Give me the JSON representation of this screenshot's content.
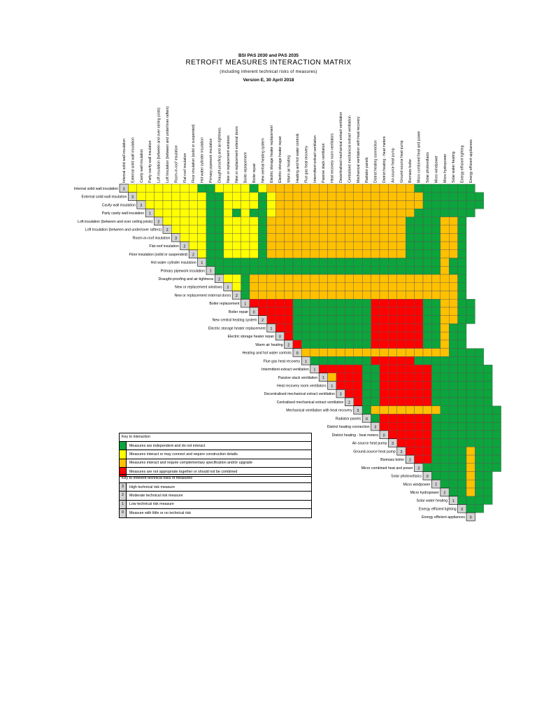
{
  "header": {
    "standards": "BSI PAS 2030 and PAS 2035",
    "title": "RETROFIT MEASURES INTERACTION MATRIX",
    "subtitle": "(including inherent technical risks of measures)",
    "version": "Version E, 30 April 2018"
  },
  "colors": {
    "G": "#0ca43c",
    "Y": "#ffff00",
    "O": "#ffc000",
    "R": "#ff0000",
    "risk_box": "#d3d3d3"
  },
  "measures": [
    {
      "label": "Internal solid wall insulation",
      "risk": "3"
    },
    {
      "label": "External solid wall insulation",
      "risk": "3"
    },
    {
      "label": "Cavity wall insulation",
      "risk": "2"
    },
    {
      "label": "Party cavity wall insulation",
      "risk": "1"
    },
    {
      "label": "Loft insulation (between and over ceiling joists)",
      "risk": "2"
    },
    {
      "label": "Loft Insulation (between and under/over rafters)",
      "risk": "2"
    },
    {
      "label": "Room-in-roof insulation",
      "risk": "3"
    },
    {
      "label": "Flat roof insulation",
      "risk": "2"
    },
    {
      "label": "Floor insulation (solid or suspended)",
      "risk": "2"
    },
    {
      "label": "Hot water cylinder insulation",
      "risk": "1"
    },
    {
      "label": "Primary pipework insulation",
      "risk": "1"
    },
    {
      "label": "Draught-proofing and air-tightness",
      "risk": "2"
    },
    {
      "label": "New or replacement windows",
      "risk": "2"
    },
    {
      "label": "New or replacement external doors",
      "risk": "2"
    },
    {
      "label": "Boiler replacement",
      "risk": "1"
    },
    {
      "label": "Boiler repair",
      "risk": "0"
    },
    {
      "label": "New central heating system",
      "risk": "2"
    },
    {
      "label": "Electric storage heater replacement",
      "risk": "1"
    },
    {
      "label": "Electric storage heater repair",
      "risk": "0"
    },
    {
      "label": "Warm air heating",
      "risk": "2"
    },
    {
      "label": "Heating and hot water controls",
      "risk": "0"
    },
    {
      "label": "Flue gas heat recovery",
      "risk": "1"
    },
    {
      "label": "Intermittent extract ventilation",
      "risk": "1"
    },
    {
      "label": "Passive stack ventilation",
      "risk": "1"
    },
    {
      "label": "Heat recovery room ventilators",
      "risk": "1"
    },
    {
      "label": "Decentralised mechanical extract ventilation",
      "risk": "3"
    },
    {
      "label": "Centralised mechanical extract ventilation",
      "risk": "2"
    },
    {
      "label": "Mechanical ventilation with heat recovery",
      "risk": "3"
    },
    {
      "label": "Radiator panels",
      "risk": "0"
    },
    {
      "label": "District heating connection",
      "risk": "3"
    },
    {
      "label": "District heating - heat meters",
      "risk": "0"
    },
    {
      "label": "Air-source heat pump",
      "risk": "3"
    },
    {
      "label": "Ground-source heat pump",
      "risk": "3"
    },
    {
      "label": "Biomass boiler",
      "risk": "2"
    },
    {
      "label": "Micro combined heat and power",
      "risk": "3"
    },
    {
      "label": "Solar photovoltaics",
      "risk": "0"
    },
    {
      "label": "Micro windpower",
      "risk": "2"
    },
    {
      "label": "Micro hydropower",
      "risk": "2"
    },
    {
      "label": "Solar water heating",
      "risk": "1"
    },
    {
      "label": "Energy efficient lighting",
      "risk": "0"
    },
    {
      "label": "Energy efficient appliances",
      "risk": "0"
    }
  ],
  "matrix_rows": [
    "YYYYYYYYGGYYYYGYOOOOOOOOOOOOOOOOOGGGGGGG",
    "YYYYYYYYGGYYYYGYOOOOOOOOOOOOOOOOOGGGGGGG",
    "YYYYYYYGGYYYYGYOOOOOOOOOOOOOOOOOGGGGGGG",
    "YYYYYYGGYGYGGYOOOOOOOOOOOOOOOOGGGGGGG",
    "YYYYYGGYYYYGOOOOOOOOOOOOOOOOGGGGOOG",
    "YYYYGGYYYYGOOOOOOOOOOOOOOOOGGGGOOG",
    "YYYGGYYYYGOOOOOOOOOOOOOOOOGGGGOOG",
    "YYGGYYYYGOOOOOOOOOOOOOOOOGGGGOOG",
    "YGGYYYYGOOOOOOOOOOOOOOOOGGGGOOG",
    "GGGGGGGGGGGGGGGGGGGGGGGGGGGOGG",
    "GGGGGGGGGGGGGGGGGGGGGGGGGGOGG",
    "YYGOOOOOOOOOOOOOOOOOOOOOOOOG",
    "YGOOOOOOOOOOOOOOOOOOOOOOOOG",
    "GOOOOOOOOOOOOOOOOOOOOOOOOG",
    "RRRRRGGGGGGGGGRRRRRRGGOOGG",
    "RRRRGGGGGGGGGRRRRRRGGOOGG",
    "RRRGGGGGGGGGRRRRRRGGOOGG",
    "RRGGGGGGGGGRRRRRRGGOGG",
    "RGGGGGGGGGRRRRRRGGOGG",
    "RGGGGGGGGRRRRRRGGOGG",
    "OOOOOOOOOOOOOOOOOGGGG",
    "GGGGGGGRRRRRGGGGGGGG",
    "RRRRRGGRRRRRRGGGGGGG",
    "ORRRGGRRRRRRGGGGGGG",
    "RRRGGRRRRRRGGGGGGG",
    "RRGGRRRRRRGGGGGGG",
    "RGGRRRRRRGGGGGGG",
    "GOOOOOOOOGGGGGGG",
    "GRRRRRRGGGGGGGG",
    "RRRRRRGGGGGGGG",
    "RRRRRGGGGGGGG",
    "RRRRGGGGGGGG",
    "RRRGGGGOGGG",
    "RRGGGGOGGG",
    "GGGGGOGGG",
    "GGGGOGG",
    "GGGOGG",
    "GGOGG",
    "GGGG",
    "GG",
    ""
  ],
  "key_interaction": {
    "title": "Key to interaction",
    "items": [
      {
        "color": "G",
        "label": "Measures are independent and do not interact"
      },
      {
        "color": "Y",
        "label": "Measures interact or may connect and require construction details"
      },
      {
        "color": "O",
        "label": "Measures interact and require complementary specification and/or upgrade"
      },
      {
        "color": "R",
        "label": "Measures are not appropriate together or should not be combined"
      }
    ]
  },
  "key_risk": {
    "title": "Key to inherent technical risks of measures",
    "items": [
      {
        "num": "3",
        "label": "High technical risk measure"
      },
      {
        "num": "2",
        "label": "Moderate technical risk measure"
      },
      {
        "num": "1",
        "label": "Low technical risk measure"
      },
      {
        "num": "0",
        "label": "Measure with little or no technical risk"
      }
    ]
  }
}
